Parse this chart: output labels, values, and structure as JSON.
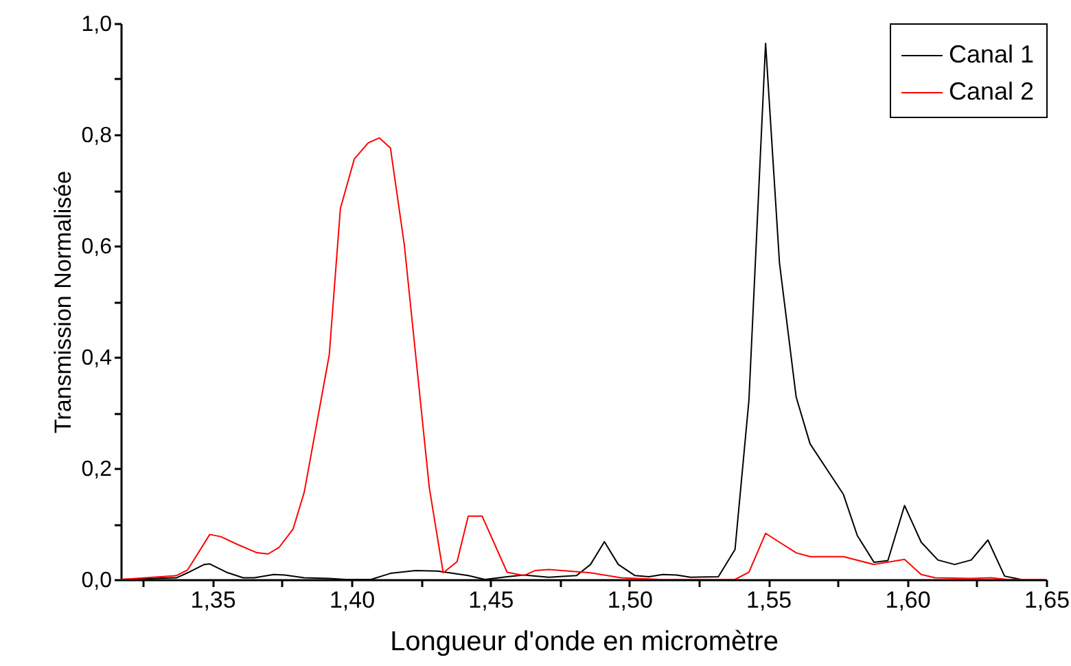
{
  "chart_data": {
    "type": "line",
    "xlabel": "Longueur d'onde en micromètre",
    "ylabel": "Transmission Normalisée",
    "xlim": [
      1.317,
      1.65
    ],
    "xticks": [
      {
        "value": 1.325,
        "label": null
      },
      {
        "value": 1.35,
        "label": "1,35"
      },
      {
        "value": 1.375,
        "label": null
      },
      {
        "value": 1.4,
        "label": "1,40"
      },
      {
        "value": 1.425,
        "label": null
      },
      {
        "value": 1.45,
        "label": "1,45"
      },
      {
        "value": 1.475,
        "label": null
      },
      {
        "value": 1.5,
        "label": "1,50"
      },
      {
        "value": 1.525,
        "label": null
      },
      {
        "value": 1.55,
        "label": "1,55"
      },
      {
        "value": 1.575,
        "label": null
      },
      {
        "value": 1.6,
        "label": "1,60"
      },
      {
        "value": 1.625,
        "label": null
      },
      {
        "value": 1.65,
        "label": "1,65"
      }
    ],
    "ylim": [
      0,
      1.0
    ],
    "yticks": [
      {
        "value": 0,
        "label": "0,0"
      },
      {
        "value": 0.1,
        "label": null
      },
      {
        "value": 0.2,
        "label": "0,2"
      },
      {
        "value": 0.3,
        "label": null
      },
      {
        "value": 0.4,
        "label": "0,4"
      },
      {
        "value": 0.5,
        "label": null
      },
      {
        "value": 0.6,
        "label": "0,6"
      },
      {
        "value": 0.7,
        "label": null
      },
      {
        "value": 0.8,
        "label": "0,8"
      },
      {
        "value": 0.9,
        "label": null
      },
      {
        "value": 1.0,
        "label": "1,0"
      }
    ],
    "grid": false,
    "legend": "top right",
    "marker": "none",
    "line_style": "solid",
    "series": [
      {
        "name": "Canal 1",
        "color": "#000000",
        "x": [
          1.317,
          1.337,
          1.341,
          1.347,
          1.349,
          1.355,
          1.361,
          1.365,
          1.372,
          1.376,
          1.383,
          1.392,
          1.398,
          1.407,
          1.414,
          1.423,
          1.431,
          1.442,
          1.448,
          1.456,
          1.462,
          1.471,
          1.481,
          1.486,
          1.491,
          1.496,
          1.502,
          1.507,
          1.512,
          1.517,
          1.522,
          1.532,
          1.538,
          1.543,
          1.549,
          1.554,
          1.56,
          1.565,
          1.577,
          1.582,
          1.588,
          1.593,
          1.599,
          1.605,
          1.611,
          1.617,
          1.623,
          1.629,
          1.635,
          1.641,
          1.649
        ],
        "values": [
          0,
          0.003,
          0.012,
          0.027,
          0.028,
          0.013,
          0.003,
          0.003,
          0.009,
          0.008,
          0.003,
          0.002,
          0,
          0,
          0.011,
          0.016,
          0.015,
          0.007,
          0,
          0.005,
          0.008,
          0.004,
          0.007,
          0.027,
          0.068,
          0.027,
          0.007,
          0.005,
          0.009,
          0.008,
          0.004,
          0.005,
          0.054,
          0.322,
          0.964,
          0.569,
          0.328,
          0.244,
          0.153,
          0.079,
          0.031,
          0.034,
          0.133,
          0.067,
          0.035,
          0.027,
          0.035,
          0.071,
          0.006,
          0,
          0
        ]
      },
      {
        "name": "Canal 2",
        "color": "#ff0000",
        "x": [
          1.317,
          1.337,
          1.341,
          1.349,
          1.353,
          1.359,
          1.366,
          1.37,
          1.374,
          1.379,
          1.383,
          1.392,
          1.396,
          1.401,
          1.406,
          1.41,
          1.414,
          1.419,
          1.428,
          1.433,
          1.438,
          1.442,
          1.447,
          1.456,
          1.462,
          1.466,
          1.471,
          1.486,
          1.497,
          1.511,
          1.538,
          1.543,
          1.549,
          1.554,
          1.56,
          1.565,
          1.577,
          1.588,
          1.599,
          1.605,
          1.61,
          1.623,
          1.63,
          1.636,
          1.649
        ],
        "values": [
          0,
          0.007,
          0.017,
          0.081,
          0.077,
          0.063,
          0.048,
          0.046,
          0.058,
          0.091,
          0.157,
          0.404,
          0.667,
          0.756,
          0.785,
          0.794,
          0.776,
          0.602,
          0.165,
          0.012,
          0.032,
          0.114,
          0.114,
          0.013,
          0.007,
          0.016,
          0.018,
          0.012,
          0.003,
          0,
          0,
          0.013,
          0.083,
          0.067,
          0.048,
          0.041,
          0.041,
          0.027,
          0.036,
          0.009,
          0.003,
          0.002,
          0.003,
          0,
          0
        ]
      }
    ]
  }
}
